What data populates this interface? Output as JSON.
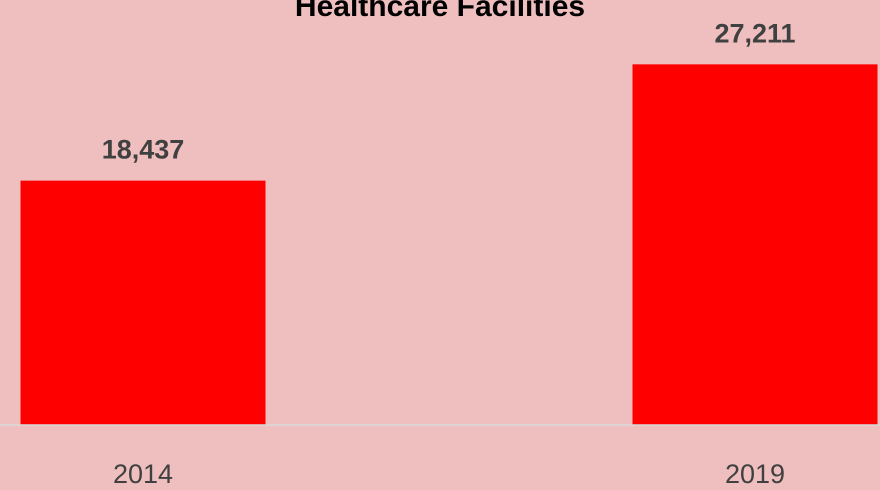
{
  "chart_data": {
    "type": "bar",
    "title": "Healthcare Facilities",
    "categories": [
      "2014",
      "2019"
    ],
    "values": [
      18437,
      27211
    ],
    "data_labels": [
      "18,437",
      "27,211"
    ],
    "xlabel": "",
    "ylabel": "",
    "ylim": [
      0,
      29500
    ],
    "grid": false,
    "legend": "none",
    "colors": {
      "background": "#efbfbf",
      "bar": "#ff0000",
      "axis": "#d9d9d9",
      "text": "#404040",
      "title": "#000000"
    }
  }
}
